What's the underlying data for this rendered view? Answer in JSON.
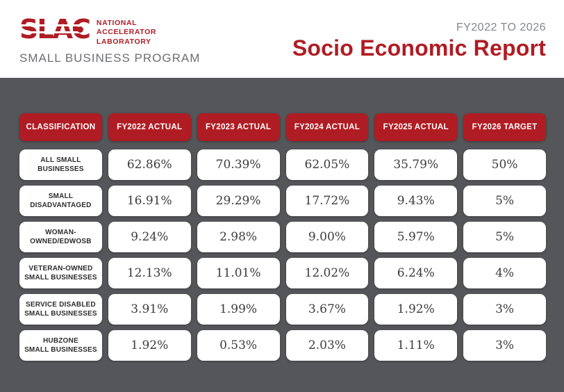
{
  "colors": {
    "brand_red": "#B01C23",
    "panel_gray": "#54565A",
    "program_gray": "#6D6E71",
    "range_gray": "#85878B",
    "value_text": "#3C3C3C",
    "label_text": "#2D2D2D"
  },
  "header": {
    "logo": {
      "wordmark": "SLAC",
      "lab_lines": [
        "NATIONAL",
        "ACCELERATOR",
        "LABORATORY"
      ],
      "program": "SMALL BUSINESS PROGRAM"
    },
    "date_range": "FY2022 TO 2026",
    "title": "Socio Economic Report"
  },
  "table": {
    "columns": [
      "CLASSIFICATION",
      "FY2022 ACTUAL",
      "FY2023 ACTUAL",
      "FY2024 ACTUAL",
      "FY2025 ACTUAL",
      "FY2026 TARGET"
    ],
    "rows": [
      {
        "lines": [
          "ALL SMALL",
          "BUSINESSES"
        ],
        "values": [
          "62.86%",
          "70.39%",
          "62.05%",
          "35.79%",
          "50%"
        ]
      },
      {
        "lines": [
          "SMALL",
          "DISADVANTAGED"
        ],
        "values": [
          "16.91%",
          "29.29%",
          "17.72%",
          "9.43%",
          "5%"
        ]
      },
      {
        "lines": [
          "WOMAN-",
          "OWNED/EDWOSB"
        ],
        "values": [
          "9.24%",
          "2.98%",
          "9.00%",
          "5.97%",
          "5%"
        ]
      },
      {
        "lines": [
          "VETERAN-OWNED",
          "SMALL BUSINESSES"
        ],
        "values": [
          "12.13%",
          "11.01%",
          "12.02%",
          "6.24%",
          "4%"
        ]
      },
      {
        "lines": [
          "SERVICE DISABLED",
          "SMALL BUSINESSES"
        ],
        "values": [
          "3.91%",
          "1.99%",
          "3.67%",
          "1.92%",
          "3%"
        ]
      },
      {
        "lines": [
          "HUBZONE",
          "SMALL BUSINESSES"
        ],
        "values": [
          "1.92%",
          "0.53%",
          "2.03%",
          "1.11%",
          "3%"
        ]
      }
    ]
  }
}
